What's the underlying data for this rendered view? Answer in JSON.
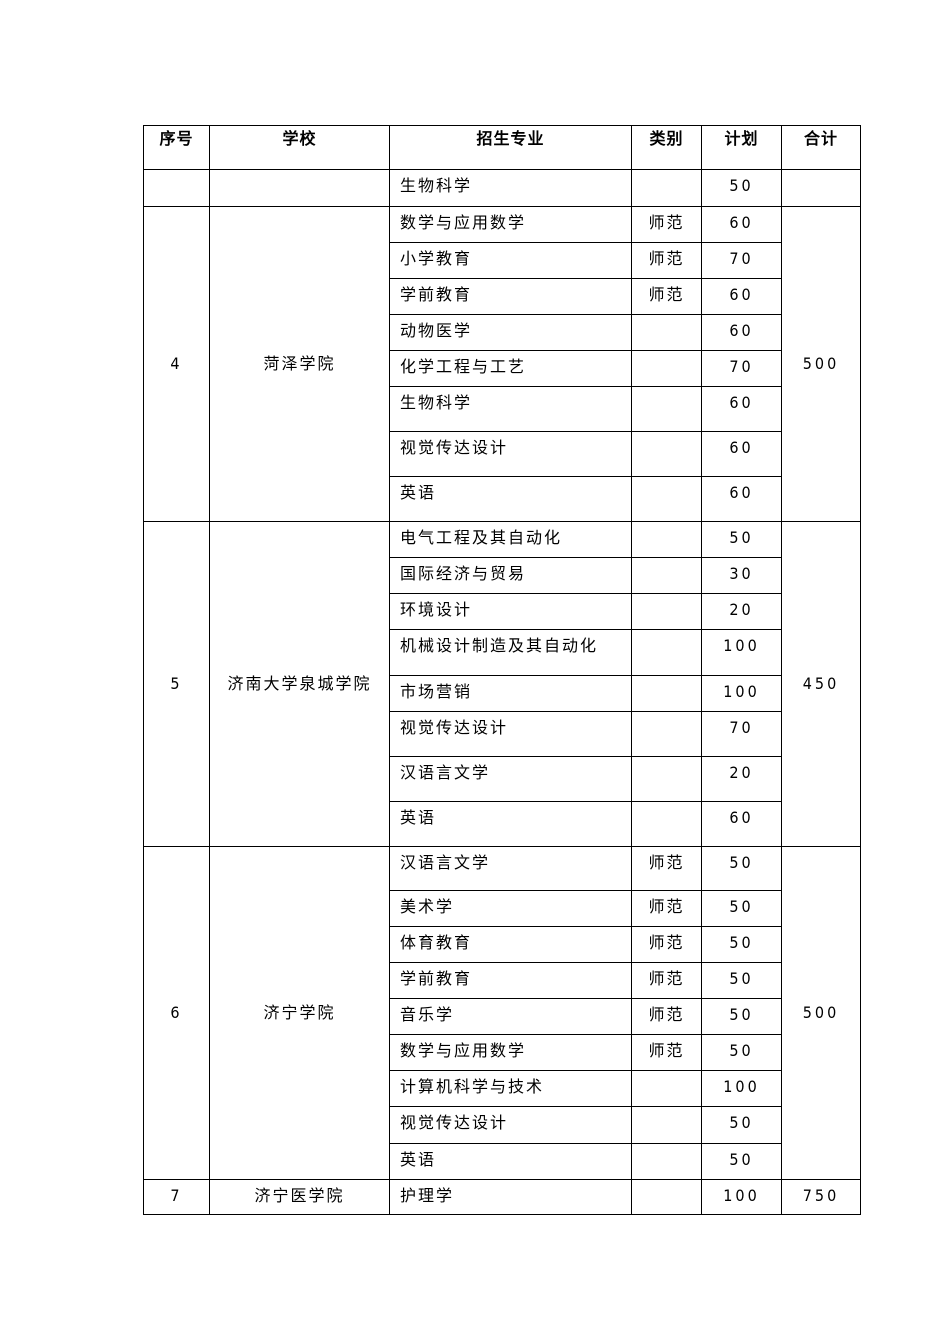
{
  "table": {
    "headers": [
      "序号",
      "学校",
      "招生专业",
      "类别",
      "计划",
      "合计"
    ],
    "groups": [
      {
        "index": "",
        "school": "",
        "total": "",
        "rows": [
          {
            "major": "生物科学",
            "category": "",
            "plan": "50"
          }
        ]
      },
      {
        "index": "4",
        "school": "菏泽学院",
        "total": "500",
        "rows": [
          {
            "major": "数学与应用数学",
            "category": "师范",
            "plan": "60"
          },
          {
            "major": "小学教育",
            "category": "师范",
            "plan": "70"
          },
          {
            "major": "学前教育",
            "category": "师范",
            "plan": "60"
          },
          {
            "major": "动物医学",
            "category": "",
            "plan": "60"
          },
          {
            "major": "化学工程与工艺",
            "category": "",
            "plan": "70"
          },
          {
            "major": "生物科学",
            "category": "",
            "plan": "60"
          },
          {
            "major": "视觉传达设计",
            "category": "",
            "plan": "60"
          },
          {
            "major": "英语",
            "category": "",
            "plan": "60"
          }
        ]
      },
      {
        "index": "5",
        "school": "济南大学泉城学院",
        "total": "450",
        "rows": [
          {
            "major": "电气工程及其自动化",
            "category": "",
            "plan": "50"
          },
          {
            "major": "国际经济与贸易",
            "category": "",
            "plan": "30"
          },
          {
            "major": "环境设计",
            "category": "",
            "plan": "20"
          },
          {
            "major": "机械设计制造及其自动化",
            "category": "",
            "plan": "100"
          },
          {
            "major": "市场营销",
            "category": "",
            "plan": "100"
          },
          {
            "major": "视觉传达设计",
            "category": "",
            "plan": "70"
          },
          {
            "major": "汉语言文学",
            "category": "",
            "plan": "20"
          },
          {
            "major": "英语",
            "category": "",
            "plan": "60"
          }
        ]
      },
      {
        "index": "6",
        "school": "济宁学院",
        "total": "500",
        "rows": [
          {
            "major": "汉语言文学",
            "category": "师范",
            "plan": "50"
          },
          {
            "major": "美术学",
            "category": "师范",
            "plan": "50"
          },
          {
            "major": "体育教育",
            "category": "师范",
            "plan": "50"
          },
          {
            "major": "学前教育",
            "category": "师范",
            "plan": "50"
          },
          {
            "major": "音乐学",
            "category": "师范",
            "plan": "50"
          },
          {
            "major": "数学与应用数学",
            "category": "师范",
            "plan": "50"
          },
          {
            "major": "计算机科学与技术",
            "category": "",
            "plan": "100"
          },
          {
            "major": "视觉传达设计",
            "category": "",
            "plan": "50"
          },
          {
            "major": "英语",
            "category": "",
            "plan": "50"
          }
        ]
      },
      {
        "index": "7",
        "school": "济宁医学院",
        "total": "750",
        "rows": [
          {
            "major": "护理学",
            "category": "",
            "plan": "100"
          }
        ]
      }
    ]
  }
}
